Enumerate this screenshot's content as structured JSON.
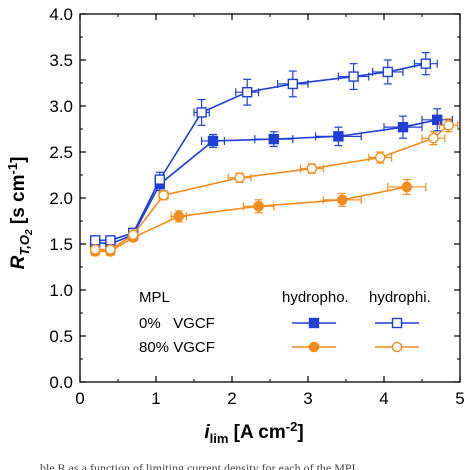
{
  "chart_data": {
    "type": "line",
    "xlim": [
      0,
      5
    ],
    "ylim": [
      0,
      4
    ],
    "xticks": [
      0,
      1,
      2,
      3,
      4,
      5
    ],
    "yticks": [
      0.0,
      0.5,
      1.0,
      1.5,
      2.0,
      2.5,
      3.0,
      3.5,
      4.0
    ],
    "ytick_labels": [
      "0.0",
      "0.5",
      "1.0",
      "1.5",
      "2.0",
      "2.5",
      "3.0",
      "3.5",
      "4.0"
    ],
    "xlabel_main": "i",
    "xlabel_sub": "lim",
    "xlabel_unit": " [A cm",
    "xlabel_unit_sup": "-2",
    "xlabel_unit_end": "]",
    "ylabel_main": "R",
    "ylabel_sub": "T,O",
    "ylabel_subsub": "2",
    "ylabel_unit": " [s cm",
    "ylabel_unit_sup": "-1",
    "ylabel_unit_end": "]",
    "grid": false,
    "legend": {
      "placement": "bottom-right",
      "header": "MPL",
      "col1": "hydropho.",
      "col2": "hydrophi.",
      "rows": [
        "0%   VGCF",
        "80% VGCF"
      ]
    },
    "colors": {
      "blue": "#1f3fd6",
      "orange": "#f28c1e"
    },
    "series": [
      {
        "color": "blue",
        "marker": "square",
        "filled": true,
        "points": [
          {
            "x": 0.2,
            "y": 1.52,
            "xerr": 0.05,
            "yerr": 0.04
          },
          {
            "x": 0.4,
            "y": 1.5,
            "xerr": 0.05,
            "yerr": 0.04
          },
          {
            "x": 0.7,
            "y": 1.6,
            "xerr": 0.05,
            "yerr": 0.05
          },
          {
            "x": 1.05,
            "y": 2.15,
            "xerr": 0.06,
            "yerr": 0.07
          },
          {
            "x": 1.75,
            "y": 2.62,
            "xerr": 0.15,
            "yerr": 0.07
          },
          {
            "x": 2.55,
            "y": 2.64,
            "xerr": 0.25,
            "yerr": 0.08
          },
          {
            "x": 3.4,
            "y": 2.67,
            "xerr": 0.3,
            "yerr": 0.1
          },
          {
            "x": 4.25,
            "y": 2.77,
            "xerr": 0.25,
            "yerr": 0.12
          },
          {
            "x": 4.7,
            "y": 2.85,
            "xerr": 0.2,
            "yerr": 0.12
          }
        ]
      },
      {
        "color": "blue",
        "marker": "square",
        "filled": false,
        "points": [
          {
            "x": 0.2,
            "y": 1.54,
            "xerr": 0.05,
            "yerr": 0.04
          },
          {
            "x": 0.4,
            "y": 1.54,
            "xerr": 0.05,
            "yerr": 0.04
          },
          {
            "x": 0.7,
            "y": 1.62,
            "xerr": 0.05,
            "yerr": 0.05
          },
          {
            "x": 1.05,
            "y": 2.2,
            "xerr": 0.06,
            "yerr": 0.08
          },
          {
            "x": 1.6,
            "y": 2.93,
            "xerr": 0.1,
            "yerr": 0.14
          },
          {
            "x": 2.2,
            "y": 3.15,
            "xerr": 0.15,
            "yerr": 0.14
          },
          {
            "x": 2.8,
            "y": 3.24,
            "xerr": 0.2,
            "yerr": 0.14
          },
          {
            "x": 3.6,
            "y": 3.32,
            "xerr": 0.2,
            "yerr": 0.14
          },
          {
            "x": 4.05,
            "y": 3.37,
            "xerr": 0.2,
            "yerr": 0.13
          },
          {
            "x": 4.55,
            "y": 3.46,
            "xerr": 0.15,
            "yerr": 0.12
          }
        ]
      },
      {
        "color": "orange",
        "marker": "circle",
        "filled": true,
        "points": [
          {
            "x": 0.2,
            "y": 1.42,
            "xerr": 0.05,
            "yerr": 0.04
          },
          {
            "x": 0.4,
            "y": 1.42,
            "xerr": 0.05,
            "yerr": 0.04
          },
          {
            "x": 0.7,
            "y": 1.57,
            "xerr": 0.05,
            "yerr": 0.04
          },
          {
            "x": 1.3,
            "y": 1.8,
            "xerr": 0.1,
            "yerr": 0.06
          },
          {
            "x": 2.35,
            "y": 1.91,
            "xerr": 0.2,
            "yerr": 0.07
          },
          {
            "x": 3.45,
            "y": 1.98,
            "xerr": 0.25,
            "yerr": 0.07
          },
          {
            "x": 4.3,
            "y": 2.12,
            "xerr": 0.25,
            "yerr": 0.08
          }
        ]
      },
      {
        "color": "orange",
        "marker": "circle",
        "filled": false,
        "points": [
          {
            "x": 0.2,
            "y": 1.44,
            "xerr": 0.05,
            "yerr": 0.04
          },
          {
            "x": 0.4,
            "y": 1.44,
            "xerr": 0.05,
            "yerr": 0.04
          },
          {
            "x": 0.7,
            "y": 1.6,
            "xerr": 0.05,
            "yerr": 0.04
          },
          {
            "x": 1.1,
            "y": 2.03,
            "xerr": 0.06,
            "yerr": 0.05
          },
          {
            "x": 2.1,
            "y": 2.22,
            "xerr": 0.15,
            "yerr": 0.05
          },
          {
            "x": 3.05,
            "y": 2.32,
            "xerr": 0.15,
            "yerr": 0.05
          },
          {
            "x": 3.95,
            "y": 2.44,
            "xerr": 0.15,
            "yerr": 0.06
          },
          {
            "x": 4.65,
            "y": 2.65,
            "xerr": 0.15,
            "yerr": 0.07
          },
          {
            "x": 4.85,
            "y": 2.79,
            "xerr": 0.12,
            "yerr": 0.07
          }
        ]
      }
    ]
  },
  "caption": "ble  R  as a function of limiting current density for each of the MPL"
}
